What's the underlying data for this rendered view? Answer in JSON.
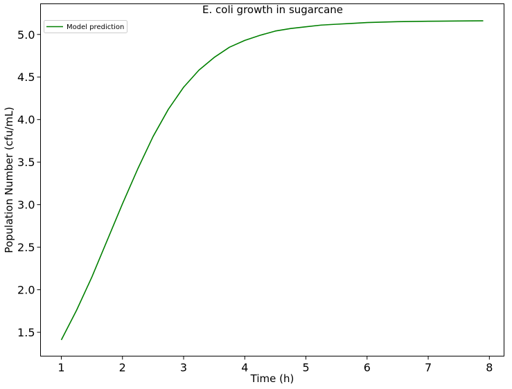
{
  "chart_data": {
    "type": "line",
    "title": "E. coli growth in sugarcane",
    "xlabel": "Time (h)",
    "ylabel": "Population Number (cfu/mL)",
    "xlim": [
      0.66,
      8.24
    ],
    "ylim": [
      1.22,
      5.36
    ],
    "xticks": [
      1,
      2,
      3,
      4,
      5,
      6,
      7,
      8
    ],
    "yticks": [
      1.5,
      2.0,
      2.5,
      3.0,
      3.5,
      4.0,
      4.5,
      5.0
    ],
    "xtick_labels": [
      "1",
      "2",
      "3",
      "4",
      "5",
      "6",
      "7",
      "8"
    ],
    "ytick_labels": [
      "1.5",
      "2.0",
      "2.5",
      "3.0",
      "3.5",
      "4.0",
      "4.5",
      "5.0"
    ],
    "grid": false,
    "legend_position": "top-left",
    "series": [
      {
        "name": "Model prediction",
        "color": "#008000",
        "x": [
          1.0,
          1.25,
          1.5,
          1.75,
          2.0,
          2.25,
          2.5,
          2.75,
          3.0,
          3.25,
          3.5,
          3.75,
          4.0,
          4.25,
          4.5,
          4.75,
          5.0,
          5.25,
          5.5,
          5.75,
          6.0,
          6.5,
          7.0,
          7.5,
          7.9
        ],
        "y": [
          1.41,
          1.76,
          2.15,
          2.58,
          3.01,
          3.42,
          3.8,
          4.12,
          4.38,
          4.58,
          4.73,
          4.85,
          4.93,
          4.99,
          5.04,
          5.07,
          5.09,
          5.11,
          5.12,
          5.13,
          5.14,
          5.15,
          5.155,
          5.158,
          5.16
        ]
      }
    ]
  }
}
